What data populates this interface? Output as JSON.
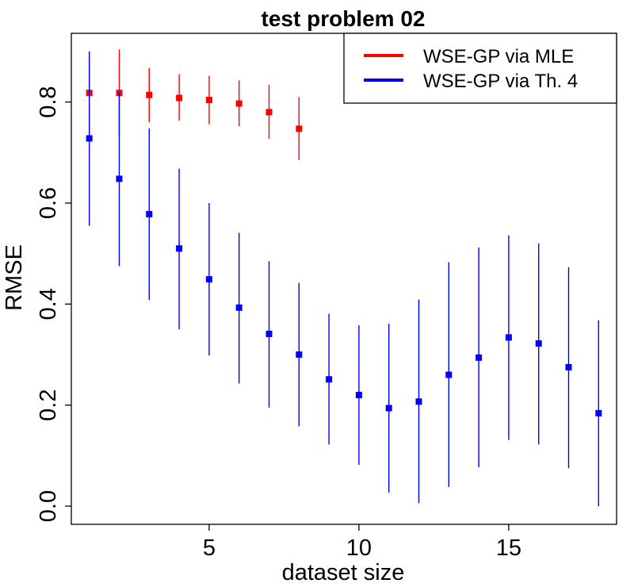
{
  "chart_data": {
    "type": "scatter",
    "title": "test problem 02",
    "xlabel": "dataset size",
    "ylabel": "RMSE",
    "xlim": [
      0.4,
      18.6
    ],
    "ylim": [
      -0.036,
      0.936
    ],
    "xticks": [
      5,
      10,
      15
    ],
    "xtick_labels": [
      "5",
      "10",
      "15"
    ],
    "yticks": [
      0.0,
      0.2,
      0.4,
      0.6,
      0.8
    ],
    "ytick_labels": [
      "0.0",
      "0.2",
      "0.4",
      "0.6",
      "0.8"
    ],
    "grid": false,
    "legend_position": "top-right",
    "series": [
      {
        "name": "WSE-GP via MLE",
        "color": "#ff0000",
        "x": [
          1,
          2,
          3,
          4,
          5,
          6,
          7,
          8
        ],
        "y": [
          0.818,
          0.818,
          0.814,
          0.808,
          0.804,
          0.797,
          0.78,
          0.747
        ],
        "lower": [
          0.738,
          0.732,
          0.76,
          0.763,
          0.756,
          0.752,
          0.727,
          0.685
        ],
        "upper": [
          0.9,
          0.904,
          0.867,
          0.855,
          0.852,
          0.843,
          0.834,
          0.81
        ]
      },
      {
        "name": "WSE-GP via Th. 4",
        "color": "#0000ff",
        "x": [
          1,
          2,
          3,
          4,
          5,
          6,
          7,
          8,
          9,
          10,
          11,
          12,
          13,
          14,
          15,
          16,
          17,
          18
        ],
        "y": [
          0.728,
          0.648,
          0.578,
          0.51,
          0.449,
          0.393,
          0.341,
          0.3,
          0.251,
          0.22,
          0.194,
          0.207,
          0.26,
          0.294,
          0.334,
          0.322,
          0.275,
          0.184
        ],
        "lower": [
          0.555,
          0.475,
          0.408,
          0.35,
          0.298,
          0.243,
          0.195,
          0.158,
          0.122,
          0.082,
          0.027,
          0.006,
          0.038,
          0.077,
          0.131,
          0.122,
          0.075,
          0.0
        ],
        "upper": [
          0.9,
          0.82,
          0.748,
          0.668,
          0.6,
          0.541,
          0.485,
          0.442,
          0.381,
          0.358,
          0.361,
          0.409,
          0.483,
          0.512,
          0.536,
          0.52,
          0.473,
          0.368
        ]
      }
    ]
  }
}
